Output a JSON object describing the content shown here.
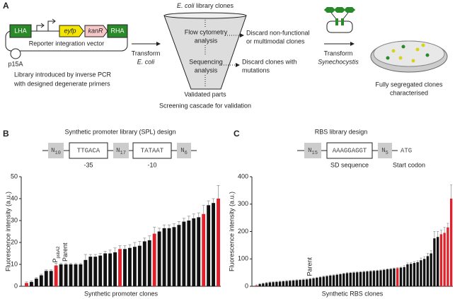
{
  "panel_labels": [
    "A",
    "B",
    "C"
  ],
  "panel_a": {
    "vector": {
      "parts": [
        "LHA",
        "eyfp",
        "kanR",
        "RHA"
      ],
      "name": "Reporter integration vector",
      "origin": "p15A"
    },
    "library_note": [
      "Library introduced by inverse PCR",
      "with designed degenerate primers"
    ],
    "transform_ecoli": [
      "Transform",
      "E. coli"
    ],
    "funnel": {
      "top": [
        "E. coli",
        " library clones"
      ],
      "step1": [
        "Flow cytometry",
        "analysis"
      ],
      "step2": [
        "Sequencing",
        "analysis"
      ],
      "bottom": "Validated parts",
      "caption": "Screening cascade for validation"
    },
    "discard1": [
      "Discard non-functional",
      "or multimodal clones"
    ],
    "discard2": [
      "Discard clones with",
      "mutations"
    ],
    "transform_syn": [
      "Transform",
      "Synechocystis"
    ],
    "result": [
      "Fully segregated clones",
      "characterised"
    ]
  },
  "panel_b_design": {
    "title": "Synthetic promoter library (SPL) design",
    "n1": {
      "base": "N",
      "sub": "10"
    },
    "box1": "TTGACA",
    "n2": {
      "base": "N",
      "sub": "17"
    },
    "box2": "TATAAT",
    "n3": {
      "base": "N",
      "sub": "6"
    },
    "label1": "-35",
    "label2": "-10"
  },
  "panel_c_design": {
    "title": "RBS library design",
    "n1": {
      "base": "N",
      "sub": "15"
    },
    "box1": "AAAGGAGGT",
    "n2": {
      "base": "N",
      "sub": "5"
    },
    "tail": "ATG",
    "label1": "SD sequence",
    "label2": "Start codon"
  },
  "chart_data": [
    {
      "type": "bar",
      "xlabel": "Synthetic promoter clones",
      "ylabel": "Fluorescence intensity (a.u.)",
      "ylim": [
        0,
        50
      ],
      "yticks": [
        0,
        10,
        20,
        30,
        40,
        50
      ],
      "annotations": [
        {
          "base": "P",
          "sub": "psbA2"
        },
        {
          "base": "Parent"
        }
      ],
      "values": [
        1.5,
        2,
        3.5,
        5,
        7,
        7,
        9.5,
        10,
        10,
        10,
        10,
        10,
        12,
        13.5,
        13.5,
        14,
        15,
        15,
        15.5,
        17,
        17,
        17.5,
        18,
        18.5,
        20.5,
        21,
        24,
        25,
        26.5,
        26.5,
        27,
        28,
        29.5,
        30,
        31,
        31.5,
        33,
        37,
        38,
        40
      ],
      "errors": [
        0.5,
        0.5,
        0.5,
        0.5,
        0.5,
        0.5,
        1,
        0.5,
        0.5,
        0.5,
        0.5,
        0.5,
        2.5,
        1,
        1,
        1,
        1,
        1.5,
        2,
        1.5,
        1.5,
        1.5,
        2,
        2,
        1.5,
        2,
        3,
        1.5,
        1.5,
        1.5,
        1.5,
        1.5,
        1.5,
        2,
        2,
        2,
        4,
        2,
        2,
        6
      ],
      "colors": [
        "#e0202a",
        "#111",
        "#111",
        "#111",
        "#111",
        "#111",
        "#e0202a",
        "#111",
        "#111",
        "#111",
        "#111",
        "#111",
        "#111",
        "#111",
        "#111",
        "#111",
        "#111",
        "#111",
        "#111",
        "#e0202a",
        "#111",
        "#111",
        "#111",
        "#111",
        "#111",
        "#111",
        "#e0202a",
        "#111",
        "#111",
        "#111",
        "#111",
        "#111",
        "#111",
        "#111",
        "#111",
        "#111",
        "#e0202a",
        "#111",
        "#111",
        "#e0202a"
      ]
    },
    {
      "type": "bar",
      "xlabel": "Synthetic RBS clones",
      "ylabel": "Fluorescence intensity (a.u.)",
      "ylim": [
        0,
        400
      ],
      "yticks": [
        0,
        100,
        200,
        300,
        400
      ],
      "annotations": [
        {
          "base": "Parent"
        }
      ],
      "values": [
        3,
        8,
        10,
        12,
        14,
        15,
        16,
        17,
        18,
        19,
        20,
        21,
        22,
        23,
        24,
        25,
        27,
        29,
        31,
        33,
        35,
        37,
        39,
        40,
        42,
        44,
        46,
        48,
        49,
        50,
        51,
        52,
        53,
        54,
        55,
        56,
        57,
        58,
        60,
        62,
        63,
        65,
        66,
        68,
        70,
        80,
        82,
        85,
        88,
        95,
        100,
        110,
        120,
        175,
        180,
        190,
        195,
        215,
        320
      ],
      "errors": [
        2,
        2,
        2,
        2,
        2,
        2,
        2,
        2,
        2,
        2,
        2,
        2,
        2,
        2,
        2,
        2,
        2,
        2,
        2,
        2,
        2,
        2,
        2,
        2,
        2,
        2,
        2,
        2,
        2,
        2,
        2,
        2,
        2,
        2,
        2,
        2,
        2,
        2,
        2,
        2,
        2,
        2,
        2,
        2,
        5,
        5,
        5,
        5,
        5,
        8,
        8,
        10,
        10,
        25,
        20,
        15,
        20,
        15,
        50
      ],
      "colors": [
        "#e0202a",
        "#111",
        "#111",
        "#111",
        "#111",
        "#111",
        "#111",
        "#111",
        "#111",
        "#111",
        "#111",
        "#111",
        "#111",
        "#111",
        "#111",
        "#111",
        "#111",
        "#111",
        "#111",
        "#111",
        "#111",
        "#111",
        "#111",
        "#111",
        "#111",
        "#111",
        "#111",
        "#111",
        "#111",
        "#111",
        "#111",
        "#111",
        "#111",
        "#111",
        "#111",
        "#111",
        "#111",
        "#111",
        "#111",
        "#111",
        "#111",
        "#111",
        "#e0202a",
        "#111",
        "#111",
        "#111",
        "#111",
        "#111",
        "#111",
        "#111",
        "#111",
        "#111",
        "#111",
        "#111",
        "#111",
        "#e0202a",
        "#e0202a",
        "#e0202a",
        "#e0202a"
      ]
    }
  ]
}
